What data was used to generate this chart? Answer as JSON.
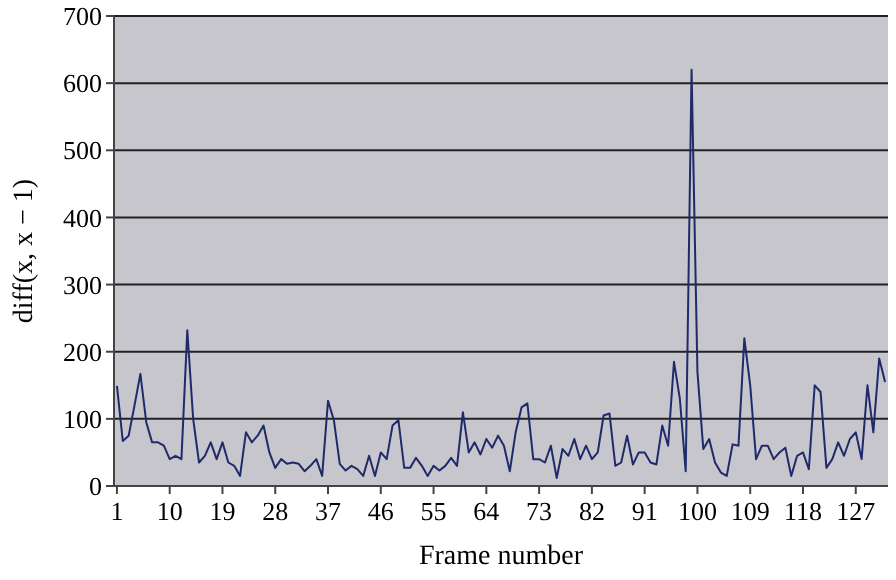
{
  "chart_data": {
    "type": "line",
    "xlabel": "Frame number",
    "ylabel": "diff(x, x − 1)",
    "x": [
      1,
      2,
      3,
      4,
      5,
      6,
      7,
      8,
      9,
      10,
      11,
      12,
      13,
      14,
      15,
      16,
      17,
      18,
      19,
      20,
      21,
      22,
      23,
      24,
      25,
      26,
      27,
      28,
      29,
      30,
      31,
      32,
      33,
      34,
      35,
      36,
      37,
      38,
      39,
      40,
      41,
      42,
      43,
      44,
      45,
      46,
      47,
      48,
      49,
      50,
      51,
      52,
      53,
      54,
      55,
      56,
      57,
      58,
      59,
      60,
      61,
      62,
      63,
      64,
      65,
      66,
      67,
      68,
      69,
      70,
      71,
      72,
      73,
      74,
      75,
      76,
      77,
      78,
      79,
      80,
      81,
      82,
      83,
      84,
      85,
      86,
      87,
      88,
      89,
      90,
      91,
      92,
      93,
      94,
      95,
      96,
      97,
      98,
      99,
      100,
      101,
      102,
      103,
      104,
      105,
      106,
      107,
      108,
      109,
      110,
      111,
      112,
      113,
      114,
      115,
      116,
      117,
      118,
      119,
      120,
      121,
      122,
      123,
      124,
      125,
      126,
      127,
      128,
      129,
      130,
      131,
      132
    ],
    "series": [
      {
        "color": "#1f2a6b",
        "values": [
          149,
          67,
          75,
          120,
          167,
          95,
          65,
          65,
          60,
          40,
          45,
          40,
          232,
          100,
          35,
          45,
          65,
          40,
          65,
          35,
          30,
          15,
          80,
          65,
          75,
          90,
          50,
          27,
          40,
          33,
          35,
          33,
          22,
          30,
          40,
          15,
          127,
          98,
          33,
          23,
          30,
          25,
          15,
          45,
          15,
          50,
          40,
          90,
          98,
          27,
          27,
          42,
          30,
          15,
          30,
          23,
          30,
          42,
          30,
          110,
          50,
          65,
          47,
          70,
          57,
          75,
          60,
          22,
          80,
          117,
          123,
          40,
          40,
          35,
          60,
          12,
          55,
          45,
          70,
          40,
          60,
          40,
          50,
          105,
          108,
          30,
          35,
          75,
          32,
          50,
          50,
          35,
          32,
          90,
          60,
          185,
          130,
          22,
          620,
          170,
          55,
          70,
          35,
          20,
          15,
          62,
          60,
          220,
          150,
          40,
          60,
          60,
          40,
          50,
          57,
          15,
          45,
          50,
          25,
          150,
          140,
          27,
          40,
          65,
          45,
          70,
          80,
          40,
          150,
          80,
          190,
          155
        ]
      }
    ],
    "xlim": [
      0.5,
      132.5
    ],
    "xticks": [
      1,
      10,
      19,
      28,
      37,
      46,
      55,
      64,
      73,
      82,
      91,
      100,
      109,
      118,
      127
    ],
    "ylim": [
      0,
      700
    ],
    "yticks": [
      0,
      100,
      200,
      300,
      400,
      500,
      600,
      700
    ],
    "grid": "y",
    "line_style": "solid"
  }
}
